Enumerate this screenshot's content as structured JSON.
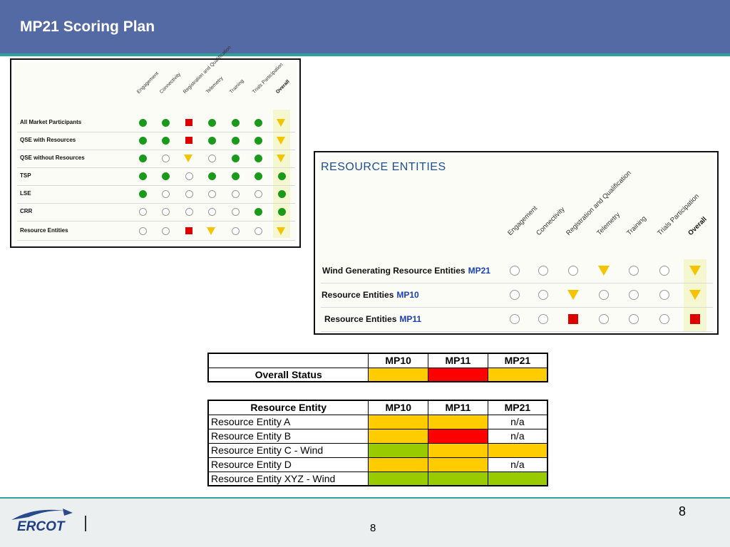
{
  "slide": {
    "title": "MP21 Scoring Plan",
    "page_number_right": "8",
    "page_number_center": "8",
    "logo_text": "ERCOT"
  },
  "panel1": {
    "columns": [
      "Engagement",
      "Connectivity",
      "Registration and Qualification",
      "Telemetry",
      "Training",
      "Trials Participation",
      "Overall"
    ],
    "rows": [
      {
        "label": "All Market Participants",
        "cells": [
          "green",
          "green",
          "red",
          "green",
          "green",
          "green",
          "yellow"
        ]
      },
      {
        "label": "QSE with Resources",
        "cells": [
          "green",
          "green",
          "red",
          "green",
          "green",
          "green",
          "yellow"
        ]
      },
      {
        "label": "QSE without Resources",
        "cells": [
          "green",
          "open",
          "yellow",
          "open",
          "green",
          "green",
          "yellow"
        ]
      },
      {
        "label": "TSP",
        "cells": [
          "green",
          "green",
          "open",
          "green",
          "green",
          "green",
          "green"
        ]
      },
      {
        "label": "LSE",
        "cells": [
          "green",
          "open",
          "open",
          "open",
          "open",
          "open",
          "green"
        ]
      },
      {
        "label": "CRR",
        "cells": [
          "open",
          "open",
          "open",
          "open",
          "open",
          "green",
          "green"
        ]
      },
      {
        "label": "Resource Entities",
        "cells": [
          "open",
          "open",
          "red",
          "yellow",
          "open",
          "open",
          "yellow"
        ]
      }
    ]
  },
  "panel2": {
    "title": "RESOURCE ENTITIES",
    "columns": [
      "Engagement",
      "Connectivity",
      "Registration and Qualification",
      "Telemetry",
      "Training",
      "Trials Participation",
      "Overall"
    ],
    "rows": [
      {
        "label": "Wind Generating Resource  Entities",
        "mp": "MP21",
        "cells": [
          "open",
          "open",
          "open",
          "yellow",
          "open",
          "open",
          "yellow"
        ]
      },
      {
        "label": "Resource Entities",
        "mp": "MP10",
        "cells": [
          "open",
          "open",
          "yellow",
          "open",
          "open",
          "open",
          "yellow"
        ]
      },
      {
        "label": "Resource Entities",
        "mp": "MP11",
        "cells": [
          "open",
          "open",
          "red",
          "open",
          "open",
          "open",
          "red"
        ]
      }
    ]
  },
  "status_table": {
    "headers": [
      "",
      "MP10",
      "MP11",
      "MP21"
    ],
    "row": {
      "label": "Overall Status",
      "colors": [
        "#ffcc00",
        "#ff0000",
        "#ffcc00"
      ]
    }
  },
  "entity_table": {
    "headers": [
      "Resource Entity",
      "MP10",
      "MP11",
      "MP21"
    ],
    "rows": [
      {
        "label": "Resource Entity A",
        "cells": [
          {
            "color": "#ffcc00",
            "text": ""
          },
          {
            "color": "#ffcc00",
            "text": ""
          },
          {
            "color": "#ffffff",
            "text": "n/a"
          }
        ]
      },
      {
        "label": "Resource Entity B",
        "cells": [
          {
            "color": "#ffcc00",
            "text": ""
          },
          {
            "color": "#ff0000",
            "text": ""
          },
          {
            "color": "#ffffff",
            "text": "n/a"
          }
        ]
      },
      {
        "label": "Resource Entity C - Wind",
        "cells": [
          {
            "color": "#99cc00",
            "text": ""
          },
          {
            "color": "#ffcc00",
            "text": ""
          },
          {
            "color": "#ffcc00",
            "text": ""
          }
        ]
      },
      {
        "label": "Resource Entity D",
        "cells": [
          {
            "color": "#ffcc00",
            "text": ""
          },
          {
            "color": "#ffcc00",
            "text": ""
          },
          {
            "color": "#ffffff",
            "text": "n/a"
          }
        ]
      },
      {
        "label": "Resource Entity XYZ - Wind",
        "cells": [
          {
            "color": "#99cc00",
            "text": ""
          },
          {
            "color": "#99cc00",
            "text": ""
          },
          {
            "color": "#99cc00",
            "text": ""
          }
        ]
      }
    ]
  }
}
